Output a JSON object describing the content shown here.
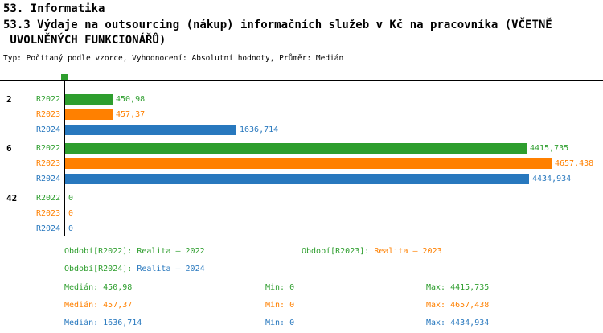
{
  "header": {
    "title": "53. Informatika",
    "subtitle_line1": "53.3 Výdaje na outsourcing (nákup) informačních služeb v Kč na pracovníka (VČETNĚ",
    "subtitle_line2": " UVOLNĚNÝCH FUNKCIONÁŘŮ)",
    "meta": "Typ: Počítaný podle vzorce, Vyhodnocení: Absolutní hodnoty, Průměr: Medián"
  },
  "colors": {
    "r2022_green": "#2e9e2e",
    "r2023_orange": "#ff8000",
    "r2024_blue": "#2878be",
    "median_gridline_blue": "#9dc3e6",
    "axis_black": "#000000"
  },
  "chart_data": {
    "type": "bar",
    "orientation": "horizontal",
    "categories": [
      "2",
      "6",
      "42"
    ],
    "series": [
      {
        "name": "R2022",
        "color": "#2e9e2e",
        "values": [
          450.98,
          4415.735,
          0
        ],
        "value_labels": [
          "450,98",
          "4415,735",
          "0"
        ]
      },
      {
        "name": "R2023",
        "color": "#ff8000",
        "values": [
          457.37,
          4657.438,
          0
        ],
        "value_labels": [
          "457,37",
          "4657,438",
          "0"
        ]
      },
      {
        "name": "R2024",
        "color": "#2878be",
        "values": [
          1636.714,
          4434.934,
          0
        ],
        "value_labels": [
          "1636,714",
          "4434,934",
          "0"
        ]
      }
    ],
    "xlim": [
      0,
      4700
    ],
    "grid": "single vertical median line",
    "legend_position": "bottom",
    "median_line": {
      "value": 1636.714,
      "color": "#9dc3e6"
    },
    "marker_color": "#2e9e2e"
  },
  "legend": [
    {
      "label": "Období[R2022]:",
      "value": " Realita – 2022",
      "label_color": "#2e9e2e",
      "value_color": "#2e9e2e"
    },
    {
      "label": "Období[R2023]:",
      "value": " Realita – 2023",
      "label_color": "#2e9e2e",
      "value_color": "#ff8000"
    },
    {
      "label": "Období[R2024]:",
      "value": " Realita – 2024",
      "label_color": "#2e9e2e",
      "value_color": "#2878be"
    }
  ],
  "stats": [
    {
      "median": "Medián: 450,98",
      "min": "Min: 0",
      "max": "Max: 4415,735",
      "color": "#2e9e2e"
    },
    {
      "median": "Medián: 457,37",
      "min": "Min: 0",
      "max": "Max: 4657,438",
      "color": "#ff8000"
    },
    {
      "median": "Medián: 1636,714",
      "min": "Min: 0",
      "max": "Max: 4434,934",
      "color": "#2878be"
    }
  ]
}
